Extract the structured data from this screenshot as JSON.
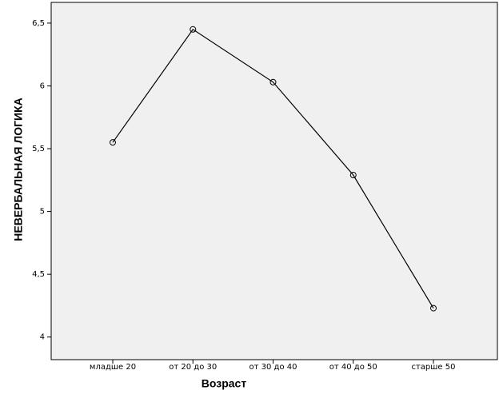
{
  "chart_data": {
    "type": "line",
    "x_label": "Возраст",
    "y_label": "НЕВЕРБАЛЬНАЯ ЛОГИКА",
    "categories": [
      "младше 20",
      "от 20 до 30",
      "от 30 до 40",
      "от 40 до 50",
      "старше 50"
    ],
    "series": [
      {
        "name": null,
        "color": "#000000",
        "values": [
          5.55,
          6.45,
          6.03,
          5.29,
          4.23
        ]
      }
    ],
    "ylim": [
      3.82,
      6.665
    ],
    "yticks": [
      4,
      {
        "value": 4.5,
        "label": "4,5"
      },
      5,
      {
        "value": 5.5,
        "label": "5,5"
      },
      6,
      {
        "value": 6.5,
        "label": "6,5"
      }
    ],
    "grid": false
  }
}
